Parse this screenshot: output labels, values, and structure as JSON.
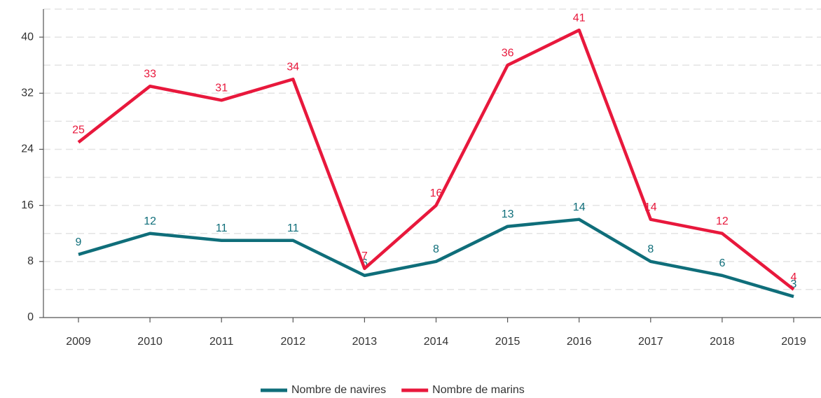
{
  "chart_data": {
    "type": "line",
    "categories": [
      "2009",
      "2010",
      "2011",
      "2012",
      "2013",
      "2014",
      "2015",
      "2016",
      "2017",
      "2018",
      "2019"
    ],
    "series": [
      {
        "name": "Nombre de navires",
        "color": "#0f6e7a",
        "values": [
          9,
          12,
          11,
          11,
          6,
          8,
          13,
          14,
          8,
          6,
          3
        ]
      },
      {
        "name": "Nombre de marins",
        "color": "#e8183c",
        "values": [
          25,
          33,
          31,
          34,
          7,
          16,
          36,
          41,
          14,
          12,
          4
        ]
      }
    ],
    "ylim": [
      0,
      44
    ],
    "yticks": [
      0,
      8,
      16,
      24,
      32,
      40
    ],
    "minor_yticks": [
      4,
      12,
      20,
      28,
      36,
      44
    ],
    "grid": true,
    "legend": "bottom"
  }
}
